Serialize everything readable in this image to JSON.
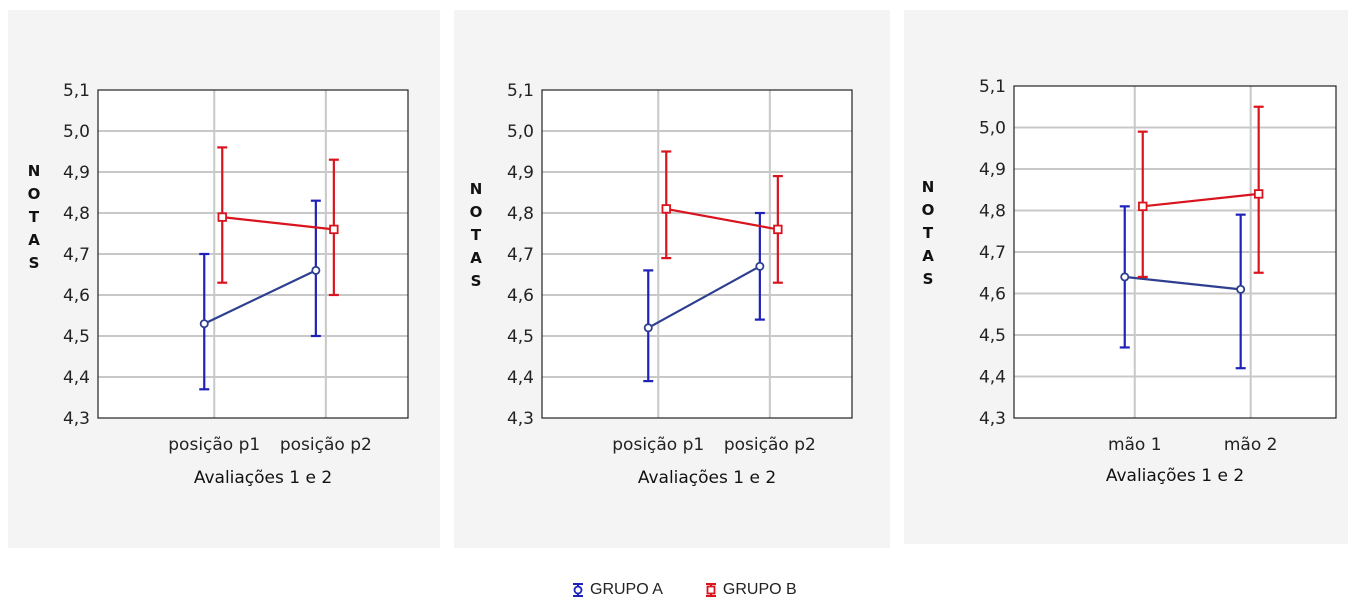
{
  "colors": {
    "group_a": "#1e22b8",
    "group_a_line": "#2f3f8f",
    "group_b": "#d9141e",
    "grid": "#c8c8c8",
    "panel_bg": "#f4f4f4"
  },
  "legend": {
    "group_a_label": "GRUPO A",
    "group_b_label": "GRUPO B",
    "group_a_icon": "circle-errorbar-icon",
    "group_b_icon": "square-errorbar-icon"
  },
  "chart_data": [
    {
      "type": "line",
      "ylabel": "NOTAS",
      "xlabel": "Avaliações 1 e 2",
      "categories": [
        "posição p1",
        "posição p2"
      ],
      "ylim": [
        4.3,
        5.1
      ],
      "yticks": [
        "4,3",
        "4,4",
        "4,5",
        "4,6",
        "4,7",
        "4,8",
        "4,9",
        "5,0",
        "5,1"
      ],
      "series": [
        {
          "name": "GRUPO A",
          "values": [
            4.53,
            4.66
          ],
          "lower": [
            4.37,
            4.5
          ],
          "upper": [
            4.7,
            4.83
          ]
        },
        {
          "name": "GRUPO B",
          "values": [
            4.79,
            4.76
          ],
          "lower": [
            4.63,
            4.6
          ],
          "upper": [
            4.96,
            4.93
          ]
        }
      ]
    },
    {
      "type": "line",
      "ylabel": "NOTAS",
      "xlabel": "Avaliações 1 e 2",
      "categories": [
        "posição p1",
        "posição p2"
      ],
      "ylim": [
        4.3,
        5.1
      ],
      "yticks": [
        "4,3",
        "4,4",
        "4,5",
        "4,6",
        "4,7",
        "4,8",
        "4,9",
        "5,0",
        "5,1"
      ],
      "series": [
        {
          "name": "GRUPO A",
          "values": [
            4.52,
            4.67
          ],
          "lower": [
            4.39,
            4.54
          ],
          "upper": [
            4.66,
            4.8
          ]
        },
        {
          "name": "GRUPO B",
          "values": [
            4.81,
            4.76
          ],
          "lower": [
            4.69,
            4.63
          ],
          "upper": [
            4.95,
            4.89
          ]
        }
      ]
    },
    {
      "type": "line",
      "ylabel": "NOTAS",
      "xlabel": "Avaliações 1 e 2",
      "categories": [
        "mão 1",
        "mão 2"
      ],
      "ylim": [
        4.3,
        5.1
      ],
      "yticks": [
        "4,3",
        "4,4",
        "4,5",
        "4,6",
        "4,7",
        "4,8",
        "4,9",
        "5,0",
        "5,1"
      ],
      "series": [
        {
          "name": "GRUPO A",
          "values": [
            4.64,
            4.61
          ],
          "lower": [
            4.47,
            4.42
          ],
          "upper": [
            4.81,
            4.79
          ]
        },
        {
          "name": "GRUPO B",
          "values": [
            4.81,
            4.84
          ],
          "lower": [
            4.64,
            4.65
          ],
          "upper": [
            4.99,
            5.05
          ]
        }
      ]
    }
  ]
}
